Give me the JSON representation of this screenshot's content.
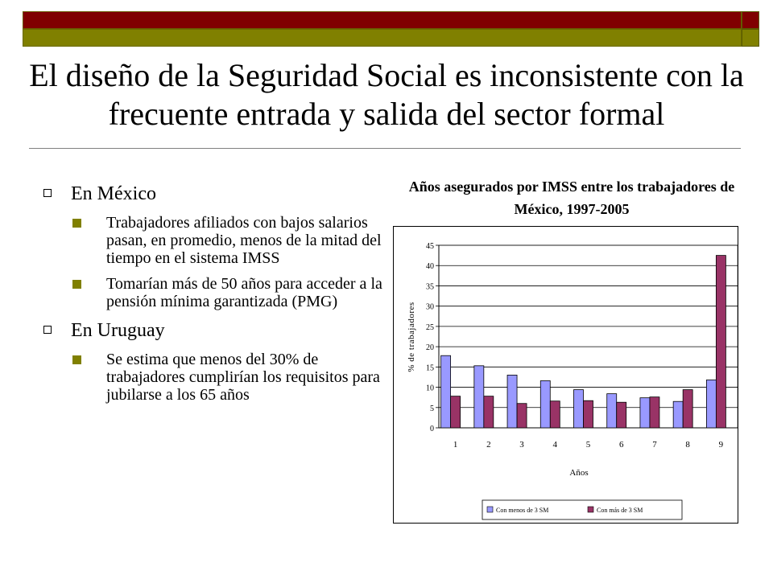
{
  "slide": {
    "title": "El diseño de la Seguridad Social es inconsistente con la frecuente entrada y salida del sector formal",
    "accent_colors": {
      "dark_red": "#800000",
      "olive": "#808000"
    }
  },
  "bullets": [
    {
      "text": "En México",
      "sub": [
        "Trabajadores afiliados con bajos salarios pasan, en promedio, menos de la mitad del tiempo en el sistema IMSS",
        "Tomarían más de 50 años para acceder a la pensión mínima garantizada (PMG)"
      ]
    },
    {
      "text": "En Uruguay",
      "sub": [
        "Se estima que menos del 30% de trabajadores cumplirían los requisitos para jubilarse a los 65 años"
      ]
    }
  ],
  "chart_data": {
    "type": "bar",
    "title": "Años asegurados por IMSS entre los trabajadores de México, 1997-2005",
    "xlabel": "Años",
    "ylabel": "% de trabajadores",
    "categories": [
      "1",
      "2",
      "3",
      "4",
      "5",
      "6",
      "7",
      "8",
      "9"
    ],
    "ylim": [
      0,
      45
    ],
    "yticks": [
      "0",
      "5",
      "10",
      "15",
      "20",
      "25",
      "30",
      "35",
      "40",
      "45"
    ],
    "grid": true,
    "legend_position": "bottom",
    "series": [
      {
        "name": "Con menos de 3 SM",
        "color": "#9999ff",
        "values": [
          17.8,
          15.3,
          13.0,
          11.6,
          9.4,
          8.4,
          7.4,
          6.5,
          11.8
        ]
      },
      {
        "name": "Con más de 3 SM",
        "color": "#993366",
        "values": [
          7.8,
          7.8,
          6.0,
          6.6,
          6.7,
          6.3,
          7.6,
          9.4,
          42.5
        ]
      }
    ]
  }
}
